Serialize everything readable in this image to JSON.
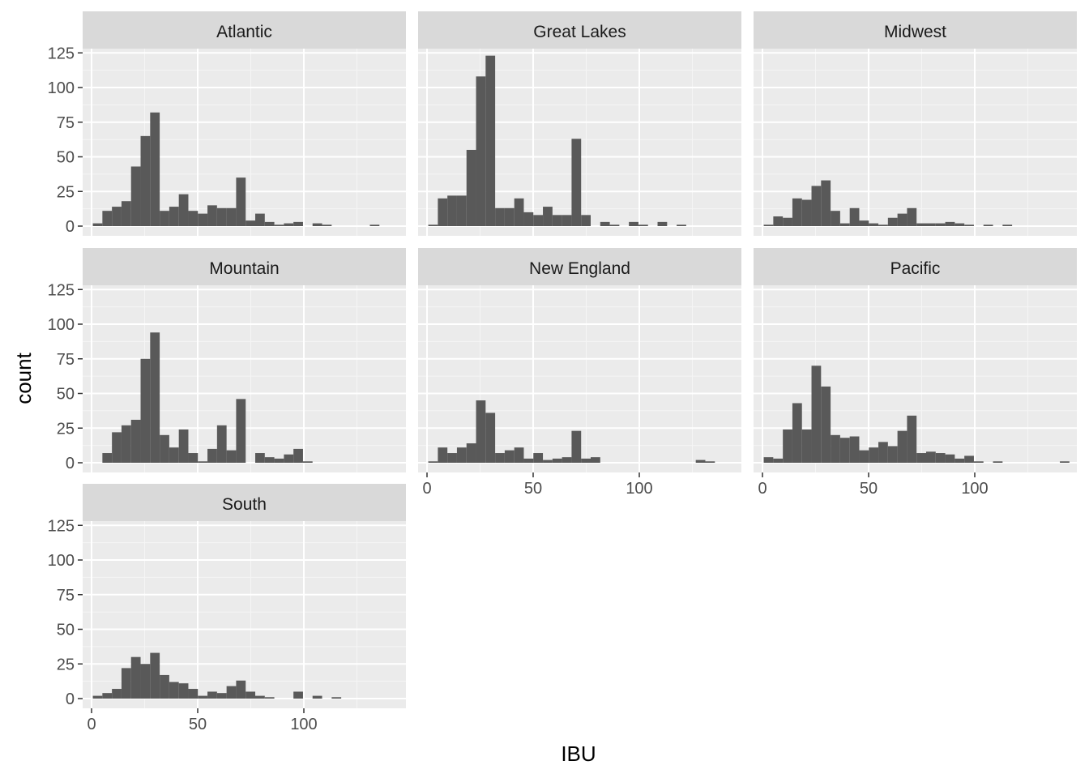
{
  "chart_data": {
    "type": "bar",
    "subtype": "faceted-histogram",
    "xlabel": "IBU",
    "ylabel": "count",
    "xlim": [
      -5,
      146
    ],
    "ylim": [
      -5,
      130
    ],
    "x_ticks": [
      0,
      50,
      100
    ],
    "y_ticks": [
      0,
      25,
      50,
      75,
      100,
      125
    ],
    "grid": true,
    "bin_start": 0.6,
    "bin_width": 4.5,
    "bar_color": "#595959",
    "panel_background": "#ebebeb",
    "strip_background": "#d9d9d9",
    "panels": [
      {
        "name": "Atlantic",
        "values": [
          2,
          11,
          14,
          18,
          43,
          65,
          82,
          11,
          14,
          23,
          11,
          9,
          15,
          13,
          13,
          35,
          4,
          9,
          3,
          1,
          2,
          3,
          0,
          2,
          1,
          0,
          0,
          0,
          0,
          1,
          0,
          0
        ]
      },
      {
        "name": "Great Lakes",
        "values": [
          1,
          20,
          22,
          22,
          55,
          108,
          123,
          13,
          13,
          20,
          10,
          8,
          14,
          8,
          8,
          63,
          8,
          0,
          3,
          1,
          0,
          3,
          1,
          0,
          3,
          0,
          1,
          0,
          0,
          0,
          0,
          0
        ]
      },
      {
        "name": "Midwest",
        "values": [
          1,
          7,
          6,
          20,
          19,
          29,
          33,
          11,
          2,
          13,
          4,
          2,
          1,
          6,
          9,
          13,
          2,
          2,
          2,
          3,
          2,
          1,
          0,
          1,
          0,
          1,
          0,
          0,
          0,
          0,
          0,
          0
        ]
      },
      {
        "name": "Mountain",
        "values": [
          0,
          7,
          22,
          27,
          31,
          75,
          94,
          20,
          11,
          24,
          7,
          1,
          10,
          27,
          9,
          46,
          0,
          7,
          4,
          3,
          6,
          10,
          1,
          0,
          0,
          0,
          0,
          0,
          0,
          0,
          0,
          0
        ]
      },
      {
        "name": "New England",
        "values": [
          1,
          11,
          7,
          11,
          14,
          45,
          36,
          7,
          9,
          11,
          3,
          7,
          2,
          3,
          4,
          23,
          3,
          4,
          0,
          0,
          0,
          0,
          0,
          0,
          0,
          0,
          0,
          0,
          2,
          1,
          0,
          0
        ]
      },
      {
        "name": "Pacific",
        "values": [
          4,
          3,
          24,
          43,
          24,
          70,
          55,
          20,
          18,
          19,
          9,
          11,
          15,
          12,
          23,
          34,
          7,
          8,
          7,
          6,
          3,
          5,
          1,
          0,
          1,
          0,
          0,
          0,
          0,
          0,
          0,
          1
        ]
      },
      {
        "name": "South",
        "values": [
          2,
          4,
          7,
          22,
          30,
          25,
          33,
          17,
          12,
          11,
          7,
          2,
          5,
          4,
          9,
          13,
          5,
          2,
          1,
          0,
          0,
          5,
          0,
          2,
          0,
          1,
          0,
          0,
          0,
          0,
          0,
          0
        ]
      }
    ]
  }
}
